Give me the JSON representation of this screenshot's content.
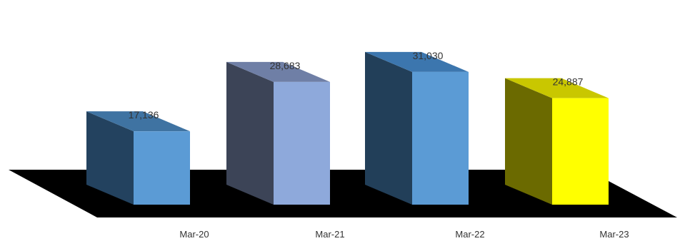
{
  "chart_data": {
    "type": "bar",
    "categories": [
      "Mar-20",
      "Mar-21",
      "Mar-22",
      "Mar-23"
    ],
    "values": [
      17136,
      28683,
      31030,
      24887
    ],
    "data_labels": [
      "17,136",
      "28,683",
      "31,030",
      "24,887"
    ],
    "title": "",
    "xlabel": "",
    "ylabel": "",
    "legend": "none",
    "grid": false,
    "style": "3d",
    "colors": {
      "bars": [
        {
          "front": "#5B9BD5",
          "side": "#23425F",
          "top": "#3F73A2"
        },
        {
          "front": "#8EA9DB",
          "side": "#3C4457",
          "top": "#6F7FA6"
        },
        {
          "front": "#5B9BD5",
          "side": "#223F59",
          "top": "#3C76AE"
        },
        {
          "front": "#FFFF00",
          "side": "#6B6A00",
          "top": "#C9C700"
        }
      ],
      "floor": "#000000",
      "text": "#333333"
    }
  }
}
